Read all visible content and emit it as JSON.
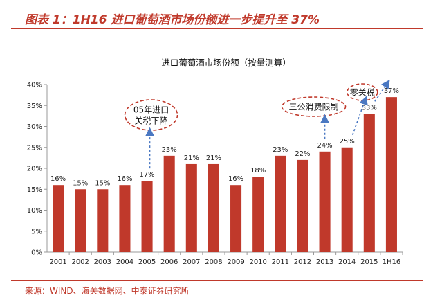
{
  "figure": {
    "title": "图表 1：1H16 进口葡萄酒市场份额进一步提升至 37%",
    "source": "来源：WIND、海关数据网、中泰证券研究所"
  },
  "chart_data": {
    "type": "bar",
    "title": "进口葡萄酒市场份额（按量测算）",
    "xlabel": "",
    "ylabel": "",
    "categories": [
      "2001",
      "2002",
      "2003",
      "2004",
      "2005",
      "2006",
      "2007",
      "2008",
      "2009",
      "2010",
      "2011",
      "2012",
      "2013",
      "2014",
      "2015",
      "1H16"
    ],
    "values": [
      16,
      15,
      15,
      16,
      17,
      23,
      21,
      21,
      16,
      18,
      23,
      22,
      24,
      25,
      33,
      37
    ],
    "value_labels": [
      "16%",
      "15%",
      "15%",
      "16%",
      "17%",
      "23%",
      "21%",
      "21%",
      "16%",
      "18%",
      "23%",
      "22%",
      "24%",
      "25%",
      "33%",
      "37%"
    ],
    "ylim": [
      0,
      40
    ],
    "yticks": [
      0,
      5,
      10,
      15,
      20,
      25,
      30,
      35,
      40
    ],
    "ytick_labels": [
      "0%",
      "5%",
      "10%",
      "15%",
      "20%",
      "25%",
      "30%",
      "35%",
      "40%"
    ],
    "bar_color": "#c0392b",
    "grid": false,
    "annotations": [
      {
        "lines": [
          "05年进口",
          "关税下降"
        ],
        "category": "2005"
      },
      {
        "lines": [
          "三公消费限制"
        ],
        "category": "2013"
      },
      {
        "lines": [
          "零关税"
        ],
        "category": "2015"
      }
    ]
  },
  "colors": {
    "accent": "#c0392b",
    "bar": "#c0392b",
    "annotation": "#c0392b",
    "arrow": "#4a78c2"
  }
}
